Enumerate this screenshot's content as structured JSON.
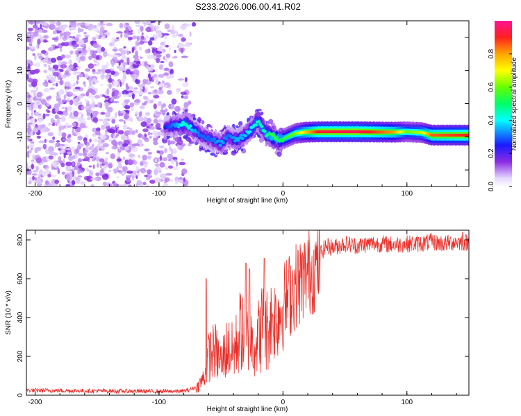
{
  "title": "S233.2026.006.00.41.R02",
  "colors": {
    "snr_line": "#e8302a",
    "frame": "#000000"
  },
  "chart_data": [
    {
      "type": "heatmap",
      "name": "spectrogram",
      "xlabel": "Height of straight line (km)",
      "ylabel": "Frequency (Hz)",
      "xlim": [
        -207,
        150
      ],
      "ylim": [
        -25,
        25
      ],
      "xticks": [
        -200,
        -100,
        0,
        100
      ],
      "xtick_labels": [
        "-200",
        "-100",
        "0",
        "100"
      ],
      "yticks": [
        -20,
        -10,
        0,
        10,
        20
      ],
      "ytick_labels": [
        "-20",
        "-10",
        "0",
        "10",
        "20"
      ],
      "colorbar": {
        "label": "Normalized spectral amplitude",
        "range": [
          0,
          1
        ],
        "ticks": [
          0.0,
          0.2,
          0.4,
          0.6,
          0.8
        ],
        "tick_labels": [
          "0.0",
          "0.2",
          "0.4",
          "0.6",
          "0.8"
        ]
      },
      "noise_region_x": [
        -207,
        -80
      ],
      "carrier_track": {
        "x": [
          -95,
          -85,
          -78,
          -72,
          -66,
          -58,
          -50,
          -44,
          -38,
          -32,
          -26,
          -20,
          -14,
          -8,
          -2,
          4,
          10,
          18,
          30,
          60,
          90,
          100,
          112,
          120,
          150
        ],
        "frequency": [
          -7,
          -6.5,
          -6,
          -8,
          -9.5,
          -11,
          -12,
          -10,
          -11,
          -10,
          -8,
          -5,
          -9,
          -10,
          -11,
          -10,
          -9,
          -8.6,
          -8.5,
          -8.5,
          -8.6,
          -8.5,
          -8.7,
          -9.5,
          -9.5
        ],
        "amplitude": [
          0.25,
          0.35,
          0.45,
          0.35,
          0.3,
          0.3,
          0.35,
          0.3,
          0.35,
          0.35,
          0.4,
          0.45,
          0.45,
          0.55,
          0.5,
          0.55,
          0.6,
          0.75,
          0.92,
          0.95,
          0.8,
          0.6,
          0.65,
          0.85,
          0.9
        ]
      }
    },
    {
      "type": "line",
      "name": "snr",
      "xlabel": "Height of straight line (km)",
      "ylabel": "SNR (10 * v/v)",
      "xlim": [
        -207,
        150
      ],
      "ylim": [
        0,
        850
      ],
      "xticks": [
        -200,
        -100,
        0,
        100
      ],
      "xtick_labels": [
        "-200",
        "-100",
        "0",
        "100"
      ],
      "yticks": [
        0,
        200,
        400,
        600,
        800
      ],
      "ytick_labels": [
        "0",
        "200",
        "400",
        "600",
        "800"
      ],
      "series": [
        {
          "name": "SNR",
          "x": [
            -207,
            -150,
            -100,
            -80,
            -70,
            -64,
            -60,
            -55,
            -50,
            -45,
            -40,
            -36,
            -34,
            -30,
            -28,
            -25,
            -20,
            -16,
            -15,
            -13,
            -10,
            -5,
            0,
            5,
            10,
            15,
            20,
            25,
            30,
            35,
            40,
            50,
            60,
            70,
            80,
            90,
            100,
            110,
            120,
            130,
            140,
            150
          ],
          "values": [
            25,
            22,
            20,
            20,
            40,
            100,
            230,
            260,
            190,
            280,
            250,
            330,
            400,
            270,
            380,
            310,
            340,
            420,
            360,
            380,
            430,
            450,
            500,
            560,
            610,
            640,
            680,
            690,
            730,
            770,
            760,
            780,
            770,
            780,
            780,
            775,
            780,
            780,
            790,
            780,
            790,
            785
          ]
        }
      ],
      "peaks": [
        {
          "x": -62,
          "value": 600
        },
        {
          "x": -30,
          "value": 680
        },
        {
          "x": -27,
          "value": 650
        },
        {
          "x": -15,
          "value": 705
        },
        {
          "x": 145,
          "value": 840
        }
      ]
    }
  ]
}
